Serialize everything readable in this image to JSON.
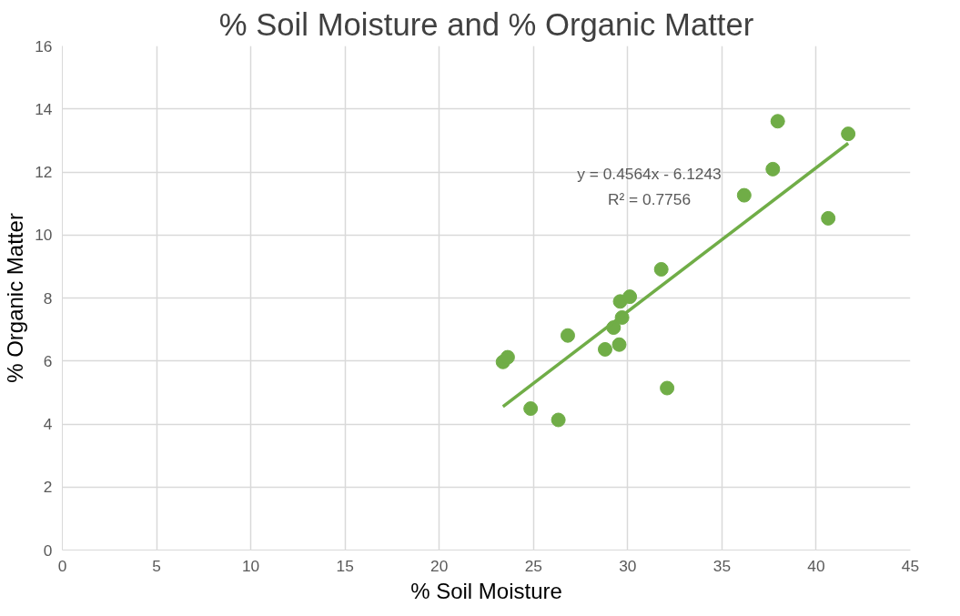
{
  "chart_data": {
    "type": "scatter",
    "title": "% Soil Moisture and % Organic Matter",
    "xlabel": "% Soil Moisture",
    "ylabel": "% Organic Matter",
    "xlim": [
      0,
      45
    ],
    "xticks": [
      0,
      5,
      10,
      15,
      20,
      25,
      30,
      35,
      40,
      45
    ],
    "ylim": [
      0,
      16
    ],
    "yticks": [
      0,
      2,
      4,
      6,
      8,
      10,
      12,
      14,
      16
    ],
    "grid": true,
    "series": [
      {
        "marker": "circle",
        "color": "#70ad47",
        "x": [
          23.38,
          23.63,
          24.85,
          26.32,
          26.82,
          28.8,
          29.25,
          29.55,
          29.7,
          29.6,
          30.11,
          31.78,
          32.09,
          36.18,
          37.7,
          37.96,
          40.64,
          41.7
        ],
        "values": [
          5.97,
          6.12,
          4.49,
          4.13,
          6.81,
          6.37,
          7.06,
          6.52,
          7.38,
          7.89,
          8.04,
          8.91,
          5.14,
          11.26,
          12.09,
          13.61,
          10.53,
          13.21
        ]
      },
      {
        "type": "line",
        "color": "#70ad47",
        "x": [
          23.38,
          41.7
        ],
        "values": [
          4.55,
          12.91
        ]
      }
    ],
    "annotations": [
      "y = 0.4564x - 6.1243\nR² = 0.7756"
    ]
  }
}
